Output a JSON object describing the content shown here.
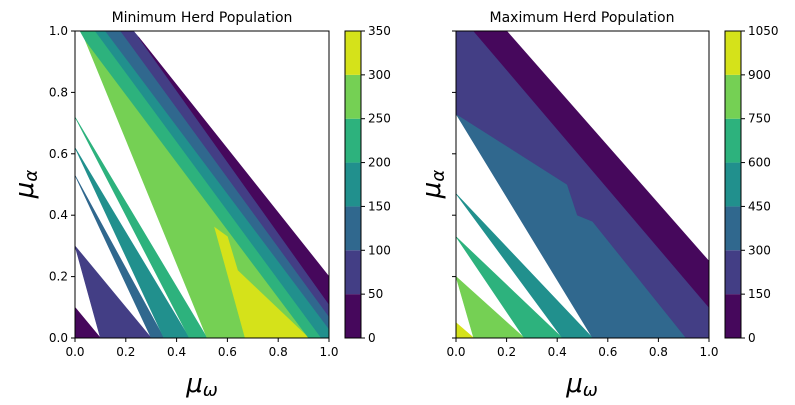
{
  "figure": {
    "panels": [
      {
        "id": "min",
        "title": "Minimum Herd Population",
        "xlabel": {
          "base": "μ",
          "sub": "ω"
        },
        "ylabel": {
          "base": "μ",
          "sub": "α"
        },
        "x_ticks": [
          "0.0",
          "0.2",
          "0.4",
          "0.6",
          "0.8",
          "1.0"
        ],
        "y_ticks": [
          "0.0",
          "0.2",
          "0.4",
          "0.6",
          "0.8",
          "1.0"
        ],
        "colorbar_ticks": [
          "0",
          "50",
          "100",
          "150",
          "200",
          "250",
          "300",
          "350"
        ]
      },
      {
        "id": "max",
        "title": "Maximum Herd Population",
        "xlabel": {
          "base": "μ",
          "sub": "ω"
        },
        "ylabel": {
          "base": "μ",
          "sub": "α"
        },
        "x_ticks": [
          "0.0",
          "0.2",
          "0.4",
          "0.6",
          "0.8",
          "1.0"
        ],
        "y_ticks": [],
        "colorbar_ticks": [
          "0",
          "150",
          "300",
          "450",
          "600",
          "750",
          "900",
          "1050"
        ]
      }
    ]
  },
  "chart_data": [
    {
      "type": "heatmap",
      "subtype": "filled-contour",
      "title": "Minimum Herd Population",
      "xlabel": "μ_ω",
      "ylabel": "μ_α",
      "xlim": [
        0,
        1
      ],
      "ylim": [
        0,
        1
      ],
      "colormap": "viridis",
      "colorbar": {
        "levels": [
          0,
          50,
          100,
          150,
          200,
          250,
          300,
          350
        ]
      },
      "level_colors": [
        "#46085c",
        "#433e85",
        "#30688e",
        "#21908d",
        "#2db27d",
        "#75d054",
        "#d5e21a"
      ],
      "valid_region": "μ_ω + μ_α ≲ 1.15 (blank/white beyond)",
      "regions": [
        {
          "band": "0-50",
          "polygon": [
            [
              0,
              0
            ],
            [
              0.1,
              0
            ],
            [
              0,
              0.1
            ]
          ]
        },
        {
          "band": "50-100",
          "polygon": [
            [
              0.1,
              0
            ],
            [
              0.3,
              0
            ],
            [
              0,
              0.3
            ]
          ]
        },
        {
          "band": "100-150",
          "polygon": [
            [
              0.3,
              0
            ],
            [
              0.35,
              0
            ],
            [
              0,
              0.53
            ]
          ]
        },
        {
          "band": "150-200",
          "polygon": [
            [
              0.35,
              0
            ],
            [
              0.45,
              0
            ],
            [
              0,
              0.62
            ]
          ]
        },
        {
          "band": "200-250",
          "polygon": [
            [
              0.45,
              0
            ],
            [
              0.52,
              0
            ],
            [
              0,
              0.72
            ]
          ]
        },
        {
          "band": "250-300",
          "polygon": [
            [
              0.52,
              0
            ],
            [
              0.92,
              0
            ],
            [
              0.04,
              0.97
            ]
          ]
        },
        {
          "band": "300-350",
          "polygon": [
            [
              0.55,
              0.36
            ],
            [
              0.6,
              0.33
            ],
            [
              0.64,
              0.22
            ],
            [
              0.92,
              0
            ],
            [
              0.67,
              0
            ]
          ]
        },
        {
          "band": "200-250",
          "polygon": [
            [
              0.92,
              0
            ],
            [
              0.97,
              0
            ],
            [
              0.08,
              1.0
            ],
            [
              0.02,
              1.0
            ],
            [
              0.04,
              0.97
            ]
          ]
        },
        {
          "band": "150-200",
          "polygon": [
            [
              0.97,
              0
            ],
            [
              1.0,
              0
            ],
            [
              1.0,
              0.03
            ],
            [
              0.12,
              1.0
            ],
            [
              0.08,
              1.0
            ]
          ]
        },
        {
          "band": "100-150",
          "polygon": [
            [
              1.0,
              0.03
            ],
            [
              1.0,
              0.07
            ],
            [
              0.18,
              1.0
            ],
            [
              0.12,
              1.0
            ]
          ]
        },
        {
          "band": "50-100",
          "polygon": [
            [
              1.0,
              0.07
            ],
            [
              1.0,
              0.11
            ],
            [
              0.25,
              0.98
            ],
            [
              0.23,
              1.0
            ],
            [
              0.18,
              1.0
            ]
          ]
        },
        {
          "band": "0-50",
          "polygon": [
            [
              1.0,
              0.11
            ],
            [
              1.0,
              0.2
            ],
            [
              0.27,
              0.96
            ],
            [
              0.25,
              0.98
            ]
          ]
        }
      ]
    },
    {
      "type": "heatmap",
      "subtype": "filled-contour",
      "title": "Maximum Herd Population",
      "xlabel": "μ_ω",
      "ylabel": "μ_α",
      "xlim": [
        0,
        1
      ],
      "ylim": [
        0,
        1
      ],
      "colormap": "viridis",
      "colorbar": {
        "levels": [
          0,
          150,
          300,
          450,
          600,
          750,
          900,
          1050
        ]
      },
      "level_colors": [
        "#46085c",
        "#433e85",
        "#30688e",
        "#21908d",
        "#2db27d",
        "#75d054",
        "#d5e21a"
      ],
      "valid_region": "μ_ω + μ_α ≲ 1.15 (blank/white beyond)",
      "regions": [
        {
          "band": "900-1050",
          "polygon": [
            [
              0,
              0
            ],
            [
              0.07,
              0
            ],
            [
              0,
              0.05
            ]
          ]
        },
        {
          "band": "750-900",
          "polygon": [
            [
              0.07,
              0
            ],
            [
              0.27,
              0
            ],
            [
              0,
              0.2
            ]
          ]
        },
        {
          "band": "600-750",
          "polygon": [
            [
              0.27,
              0
            ],
            [
              0.42,
              0
            ],
            [
              0,
              0.33
            ]
          ]
        },
        {
          "band": "450-600",
          "polygon": [
            [
              0.42,
              0
            ],
            [
              0.54,
              0
            ],
            [
              0,
              0.47
            ]
          ]
        },
        {
          "band": "300-450",
          "polygon": [
            [
              0.54,
              0
            ],
            [
              0.91,
              0
            ],
            [
              0.54,
              0.38
            ],
            [
              0.48,
              0.4
            ],
            [
              0.44,
              0.5
            ],
            [
              0.02,
              0.72
            ],
            [
              0,
              0.73
            ]
          ]
        },
        {
          "band": "150-300",
          "polygon": [
            [
              0.91,
              0
            ],
            [
              1.0,
              0
            ],
            [
              1.0,
              0.1
            ],
            [
              0.07,
              1.0
            ],
            [
              0,
              1.0
            ],
            [
              0,
              0.73
            ],
            [
              0.02,
              0.72
            ],
            [
              0.44,
              0.5
            ],
            [
              0.48,
              0.4
            ],
            [
              0.54,
              0.38
            ]
          ]
        },
        {
          "band": "0-150",
          "polygon": [
            [
              1.0,
              0.1
            ],
            [
              1.0,
              0.25
            ],
            [
              0.2,
              1.0
            ],
            [
              0.07,
              1.0
            ]
          ]
        }
      ]
    }
  ]
}
